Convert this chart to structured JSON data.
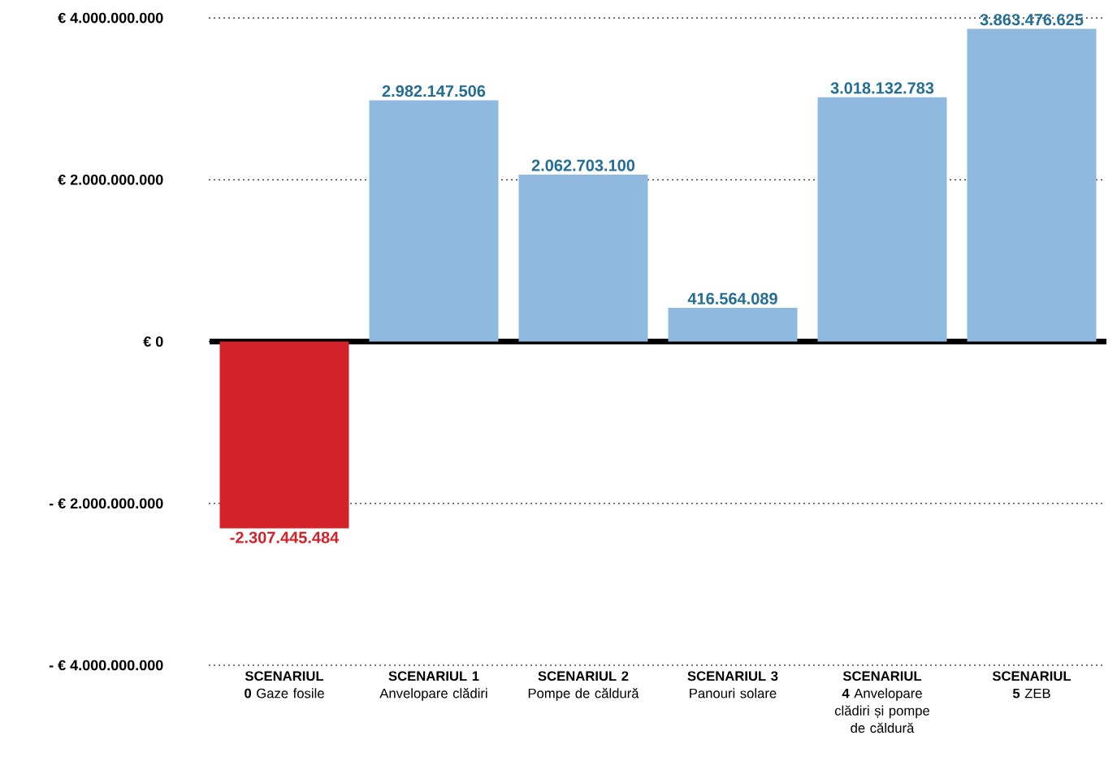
{
  "chart_data": {
    "type": "bar",
    "categories": [
      "**SCENARIUL 0** Gaze fosile",
      "**SCENARIUL 1** Anvelopare clădiri",
      "**SCENARIUL 2** Pompe de căldură",
      "**SCENARIUL 3** Panouri solare",
      "**SCENARIUL 4** Anvelopare clădiri și pompe de căldură",
      "**SCENARIUL 5** ZEB"
    ],
    "values": [
      -2307445484,
      2982147506,
      2062703100,
      416564089,
      3018132783,
      3863476625
    ],
    "value_labels": [
      "-2.307.445.484",
      "2.982.147.506",
      "2.062.703.100",
      "416.564.089",
      "3.018.132.783",
      "3.863.476.625"
    ],
    "colors": [
      "#d3222a",
      "#8fb9de",
      "#8fb9de",
      "#8fb9de",
      "#8fb9de",
      "#8fb9de"
    ],
    "ylim": [
      -4000000000,
      4000000000
    ],
    "yticks": [
      {
        "value": -4000000000,
        "label": "- € 4.000.000.000"
      },
      {
        "value": -2000000000,
        "label": "- € 2.000.000.000"
      },
      {
        "value": 0,
        "label": "€ 0"
      },
      {
        "value": 2000000000,
        "label": "€ 2.000.000.000"
      },
      {
        "value": 4000000000,
        "label": "€ 4.000.000.000"
      }
    ],
    "grid": "y",
    "ref_lines": [
      {
        "axis": "y",
        "value": 0,
        "color": "#000000"
      }
    ]
  }
}
